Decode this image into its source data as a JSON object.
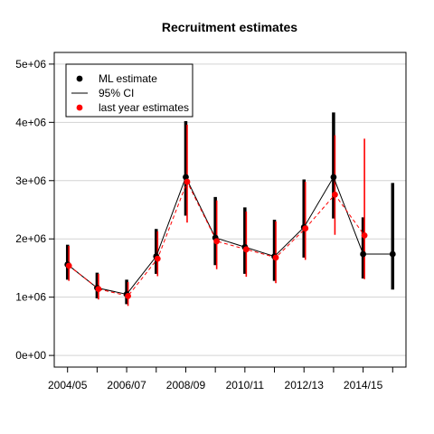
{
  "chart_data": {
    "type": "line",
    "title": "Recruitment estimates",
    "xlabel": "",
    "ylabel": "",
    "x": [
      2004,
      2005,
      2006,
      2007,
      2008,
      2009,
      2010,
      2011,
      2012,
      2013,
      2014,
      2015
    ],
    "x_tick_labels": [
      {
        "x": 2004,
        "label": "2004/05"
      },
      {
        "x": 2006,
        "label": "2006/07"
      },
      {
        "x": 2008,
        "label": "2008/09"
      },
      {
        "x": 2010,
        "label": "2010/11"
      },
      {
        "x": 2012,
        "label": "2012/13"
      },
      {
        "x": 2014,
        "label": "2014/15"
      }
    ],
    "y_ticks": [
      0,
      1000000,
      2000000,
      3000000,
      4000000,
      5000000
    ],
    "y_tick_labels": [
      "0e+00",
      "1e+06",
      "2e+06",
      "3e+06",
      "4e+06",
      "5e+06"
    ],
    "xlim": [
      2003.55,
      2015.45
    ],
    "ylim": [
      -200000,
      5200000
    ],
    "grid": "horizontal",
    "legend_position": "top-left",
    "series": [
      {
        "name": "ML estimate",
        "color": "#000000",
        "style": "solid",
        "x": [
          2004,
          2005,
          2006,
          2007,
          2008,
          2009,
          2010,
          2011,
          2012,
          2013,
          2014,
          2015
        ],
        "values": [
          1560000,
          1160000,
          1050000,
          1700000,
          3060000,
          2020000,
          1860000,
          1700000,
          2200000,
          3060000,
          1740000,
          1740000
        ],
        "ci_low": [
          1300000,
          980000,
          880000,
          1400000,
          2400000,
          1550000,
          1400000,
          1280000,
          1680000,
          2350000,
          1320000,
          1130000
        ],
        "ci_high": [
          1900000,
          1420000,
          1300000,
          2170000,
          4020000,
          2720000,
          2540000,
          2330000,
          3020000,
          4170000,
          2370000,
          2960000
        ]
      },
      {
        "name": "last year estimates",
        "color": "#ff0000",
        "style": "dashed",
        "x": [
          2004,
          2005,
          2006,
          2007,
          2008,
          2009,
          2010,
          2011,
          2012,
          2013,
          2014
        ],
        "values": [
          1540000,
          1140000,
          1020000,
          1660000,
          2980000,
          1960000,
          1820000,
          1680000,
          2180000,
          2760000,
          2060000
        ],
        "ci_low": [
          1280000,
          960000,
          850000,
          1360000,
          2280000,
          1480000,
          1350000,
          1240000,
          1640000,
          2070000,
          1310000
        ],
        "ci_high": [
          1880000,
          1400000,
          1260000,
          2130000,
          3960000,
          2660000,
          2470000,
          2300000,
          2980000,
          3780000,
          3720000
        ]
      }
    ],
    "legend": [
      {
        "label": "ML estimate",
        "symbol": "point",
        "color": "#000000"
      },
      {
        "label": "95% CI",
        "symbol": "line",
        "color": "#000000"
      },
      {
        "label": "last year estimates",
        "symbol": "point",
        "color": "#ff0000"
      }
    ]
  }
}
